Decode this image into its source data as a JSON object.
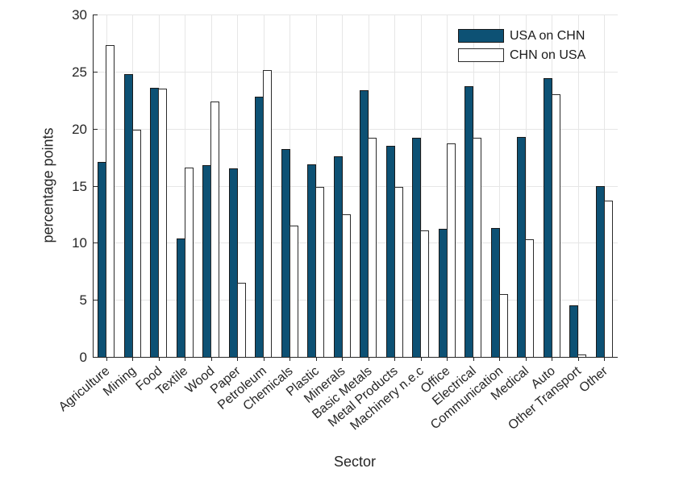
{
  "chart_data": {
    "type": "bar",
    "title": "",
    "xlabel": "Sector",
    "ylabel": "percentage points",
    "ylim": [
      0,
      30
    ],
    "yticks": [
      0,
      5,
      10,
      15,
      20,
      25,
      30
    ],
    "grid": true,
    "legend_position": "top-right",
    "categories": [
      "Agriculture",
      "Mining",
      "Food",
      "Textile",
      "Wood",
      "Paper",
      "Petroleum",
      "Chemicals",
      "Plastic",
      "Minerals",
      "Basic Metals",
      "Metal Products",
      "Machinery n.e.c",
      "Office",
      "Electrical",
      "Communication",
      "Medical",
      "Auto",
      "Other Transport",
      "Other"
    ],
    "series": [
      {
        "name": "USA on CHN",
        "fill": "#0d5174",
        "edge": "#1a1a1a",
        "values": [
          17.1,
          24.8,
          23.6,
          10.4,
          16.8,
          16.5,
          22.8,
          18.2,
          16.9,
          17.6,
          23.4,
          18.5,
          19.2,
          11.2,
          23.7,
          11.3,
          19.3,
          24.4,
          4.5,
          15.0
        ]
      },
      {
        "name": "CHN on USA",
        "fill": "#ffffff",
        "edge": "#2b2b2b",
        "values": [
          27.3,
          19.9,
          23.5,
          16.6,
          22.4,
          6.5,
          25.1,
          11.5,
          14.9,
          12.5,
          19.2,
          14.9,
          11.1,
          18.7,
          19.2,
          5.5,
          10.3,
          23.0,
          0.2,
          13.7
        ]
      }
    ]
  },
  "colors": {
    "axis": "#262626",
    "grid": "#e6e6e6",
    "background": "#ffffff"
  }
}
